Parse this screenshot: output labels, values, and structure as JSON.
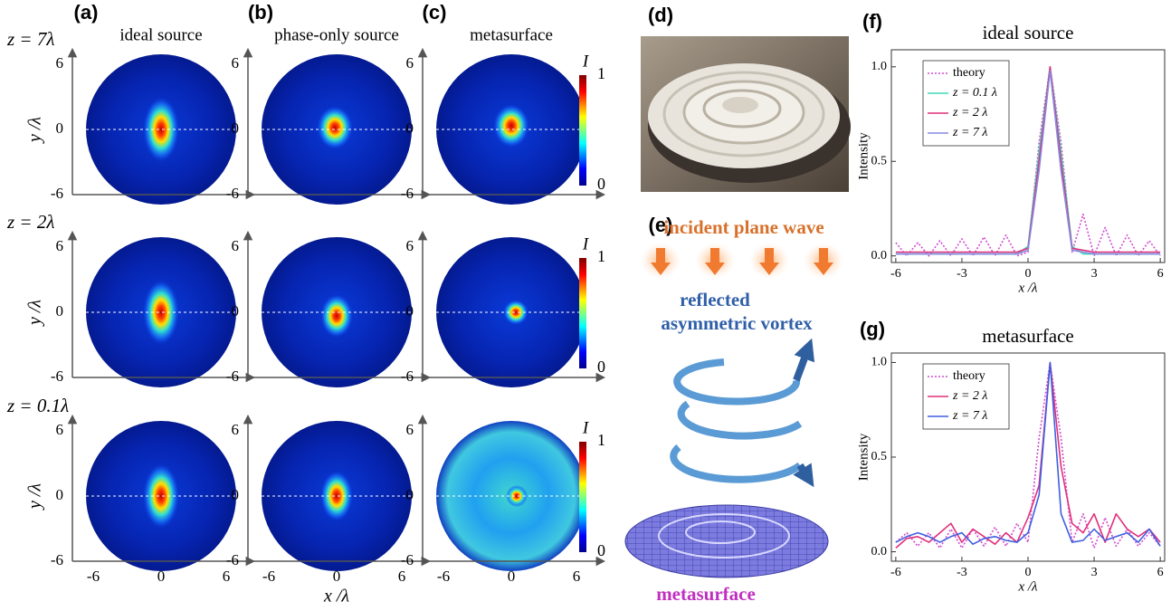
{
  "panel_labels": [
    "(a)",
    "(b)",
    "(c)",
    "(d)",
    "(e)",
    "(f)",
    "(g)"
  ],
  "column_titles": [
    "ideal source",
    "phase-only source",
    "metasurface"
  ],
  "row_labels": [
    "z = 7λ",
    "z = 2λ",
    "z = 0.1λ"
  ],
  "field_maps": {
    "ticks": [
      -6,
      0,
      6
    ],
    "x_label": "x /λ",
    "y_label": "y /λ",
    "colorbar": {
      "label": "I",
      "ticks": [
        1,
        0
      ]
    }
  },
  "diagram": {
    "incident_label": "incident plane wave",
    "vortex_label": [
      "reflected",
      "asymmetric vortex"
    ],
    "metasurface_label": "metasurface"
  },
  "chart_data": [
    {
      "type": "line",
      "title": "ideal source",
      "x_label": "x /λ",
      "y_label": "Intensity",
      "x": [
        -6,
        -5.5,
        -5,
        -4.5,
        -4,
        -3.5,
        -3,
        -2.5,
        -2,
        -1.5,
        -1,
        -0.5,
        0,
        0.5,
        1,
        1.5,
        2,
        2.5,
        3,
        3.5,
        4,
        4.5,
        5,
        5.5,
        6
      ],
      "xlim": [
        -6.2,
        6.2
      ],
      "ylim": [
        -0.035,
        1.09
      ],
      "xticks": [
        -6,
        -3,
        0,
        3,
        6
      ],
      "yticks": [
        {
          "value": 0,
          "label": "0.0"
        },
        {
          "value": 0.5,
          "label": "0.5"
        },
        {
          "value": 1,
          "label": "1.0"
        }
      ],
      "legend": "upper left",
      "series": [
        {
          "name": "theory",
          "color": "#d04ad0",
          "line_style": "dotted",
          "values": [
            0.07,
            0.0,
            0.07,
            0.0,
            0.08,
            0.0,
            0.09,
            0.0,
            0.1,
            0.0,
            0.11,
            0.0,
            0.02,
            0.6,
            1.0,
            0.6,
            0.02,
            0.22,
            0.0,
            0.15,
            0.0,
            0.11,
            0.0,
            0.08,
            0.0
          ]
        },
        {
          "name": "z = 0.1 λ",
          "color": "#3fd9b8",
          "line_style": "solid",
          "values": [
            0.01,
            0.01,
            0.01,
            0.01,
            0.01,
            0.01,
            0.01,
            0.01,
            0.01,
            0.01,
            0.01,
            0.01,
            0.05,
            0.55,
            1.0,
            0.55,
            0.05,
            0.01,
            0.01,
            0.01,
            0.01,
            0.01,
            0.01,
            0.01,
            0.01
          ]
        },
        {
          "name": "z = 2 λ",
          "color": "#e0307a",
          "line_style": "solid",
          "values": [
            0.02,
            0.02,
            0.02,
            0.02,
            0.02,
            0.02,
            0.02,
            0.02,
            0.02,
            0.02,
            0.02,
            0.02,
            0.04,
            0.5,
            1.0,
            0.5,
            0.04,
            0.03,
            0.02,
            0.02,
            0.02,
            0.02,
            0.02,
            0.02,
            0.02
          ]
        },
        {
          "name": "z = 7 λ",
          "color": "#8888e0",
          "line_style": "solid",
          "values": [
            0.01,
            0.01,
            0.01,
            0.01,
            0.01,
            0.01,
            0.01,
            0.01,
            0.01,
            0.01,
            0.01,
            0.01,
            0.03,
            0.45,
            0.98,
            0.45,
            0.03,
            0.02,
            0.01,
            0.01,
            0.01,
            0.01,
            0.01,
            0.01,
            0.01
          ]
        }
      ]
    },
    {
      "type": "line",
      "title": "metasurface",
      "x_label": "x /λ",
      "y_label": "Intensity",
      "x": [
        -6,
        -5.5,
        -5,
        -4.5,
        -4,
        -3.5,
        -3,
        -2.5,
        -2,
        -1.5,
        -1,
        -0.5,
        0,
        0.5,
        1,
        1.5,
        2,
        2.5,
        3,
        3.5,
        4,
        4.5,
        5,
        5.5,
        6
      ],
      "xlim": [
        -6.2,
        6.2
      ],
      "ylim": [
        -0.05,
        1.05
      ],
      "xticks": [
        -6,
        -3,
        0,
        3,
        6
      ],
      "yticks": [
        {
          "value": 0,
          "label": "0.0"
        },
        {
          "value": 0.5,
          "label": "0.5"
        },
        {
          "value": 1,
          "label": "1.0"
        }
      ],
      "legend": "upper left",
      "series": [
        {
          "name": "theory",
          "color": "#d04ad0",
          "line_style": "dotted",
          "values": [
            0.05,
            0.1,
            0.03,
            0.1,
            0.02,
            0.12,
            0.02,
            0.12,
            0.03,
            0.13,
            0.03,
            0.15,
            0.05,
            0.6,
            1.0,
            0.6,
            0.05,
            0.2,
            0.02,
            0.18,
            0.03,
            0.12,
            0.03,
            0.1,
            0.03
          ]
        },
        {
          "name": "z = 2 λ",
          "color": "#e0307a",
          "line_style": "solid",
          "values": [
            0.02,
            0.07,
            0.08,
            0.05,
            0.1,
            0.15,
            0.05,
            0.12,
            0.08,
            0.04,
            0.1,
            0.05,
            0.18,
            0.35,
            1.0,
            0.45,
            0.15,
            0.1,
            0.2,
            0.05,
            0.2,
            0.12,
            0.08,
            0.12,
            0.05
          ]
        },
        {
          "name": "z = 7 λ",
          "color": "#3f5fe0",
          "line_style": "solid",
          "values": [
            0.05,
            0.08,
            0.1,
            0.08,
            0.05,
            0.08,
            0.1,
            0.04,
            0.07,
            0.08,
            0.06,
            0.05,
            0.1,
            0.3,
            1.0,
            0.2,
            0.05,
            0.06,
            0.12,
            0.06,
            0.08,
            0.1,
            0.05,
            0.12,
            0.03
          ]
        }
      ]
    }
  ]
}
